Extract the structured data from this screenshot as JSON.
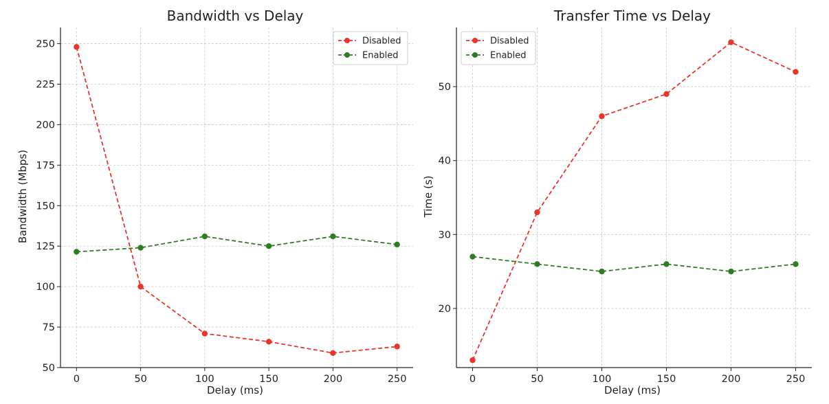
{
  "chart_data": [
    {
      "type": "line",
      "title": "Bandwidth vs Delay",
      "xlabel": "Delay (ms)",
      "ylabel": "Bandwidth (Mbps)",
      "x": [
        0,
        50,
        100,
        150,
        200,
        250
      ],
      "xlim": [
        -12.5,
        262.5
      ],
      "ylim": [
        50,
        260
      ],
      "xticks": [
        0,
        50,
        100,
        150,
        200,
        250
      ],
      "yticks": [
        50,
        75,
        100,
        125,
        150,
        175,
        200,
        225,
        250
      ],
      "grid": true,
      "legend_position": "top-right",
      "series": [
        {
          "name": "Disabled",
          "values": [
            248,
            100,
            71,
            66,
            59,
            63
          ],
          "color": "#e8362d",
          "style": "dashed",
          "marker": "circle"
        },
        {
          "name": "Enabled",
          "values": [
            121.5,
            124,
            131,
            125,
            131,
            126
          ],
          "color": "#2e7d22",
          "style": "dashed",
          "marker": "circle"
        }
      ]
    },
    {
      "type": "line",
      "title": "Transfer Time vs Delay",
      "xlabel": "Delay (ms)",
      "ylabel": "Time (s)",
      "x": [
        0,
        50,
        100,
        150,
        200,
        250
      ],
      "xlim": [
        -12.5,
        262.5
      ],
      "ylim": [
        12,
        58
      ],
      "xticks": [
        0,
        50,
        100,
        150,
        200,
        250
      ],
      "yticks": [
        20,
        30,
        40,
        50
      ],
      "grid": true,
      "legend_position": "top-left",
      "series": [
        {
          "name": "Disabled",
          "values": [
            13,
            33,
            46,
            49,
            56,
            52
          ],
          "color": "#e8362d",
          "style": "dashed",
          "marker": "circle"
        },
        {
          "name": "Enabled",
          "values": [
            27,
            26,
            25,
            26,
            25,
            26
          ],
          "color": "#2e7d22",
          "style": "dashed",
          "marker": "circle"
        }
      ]
    }
  ]
}
